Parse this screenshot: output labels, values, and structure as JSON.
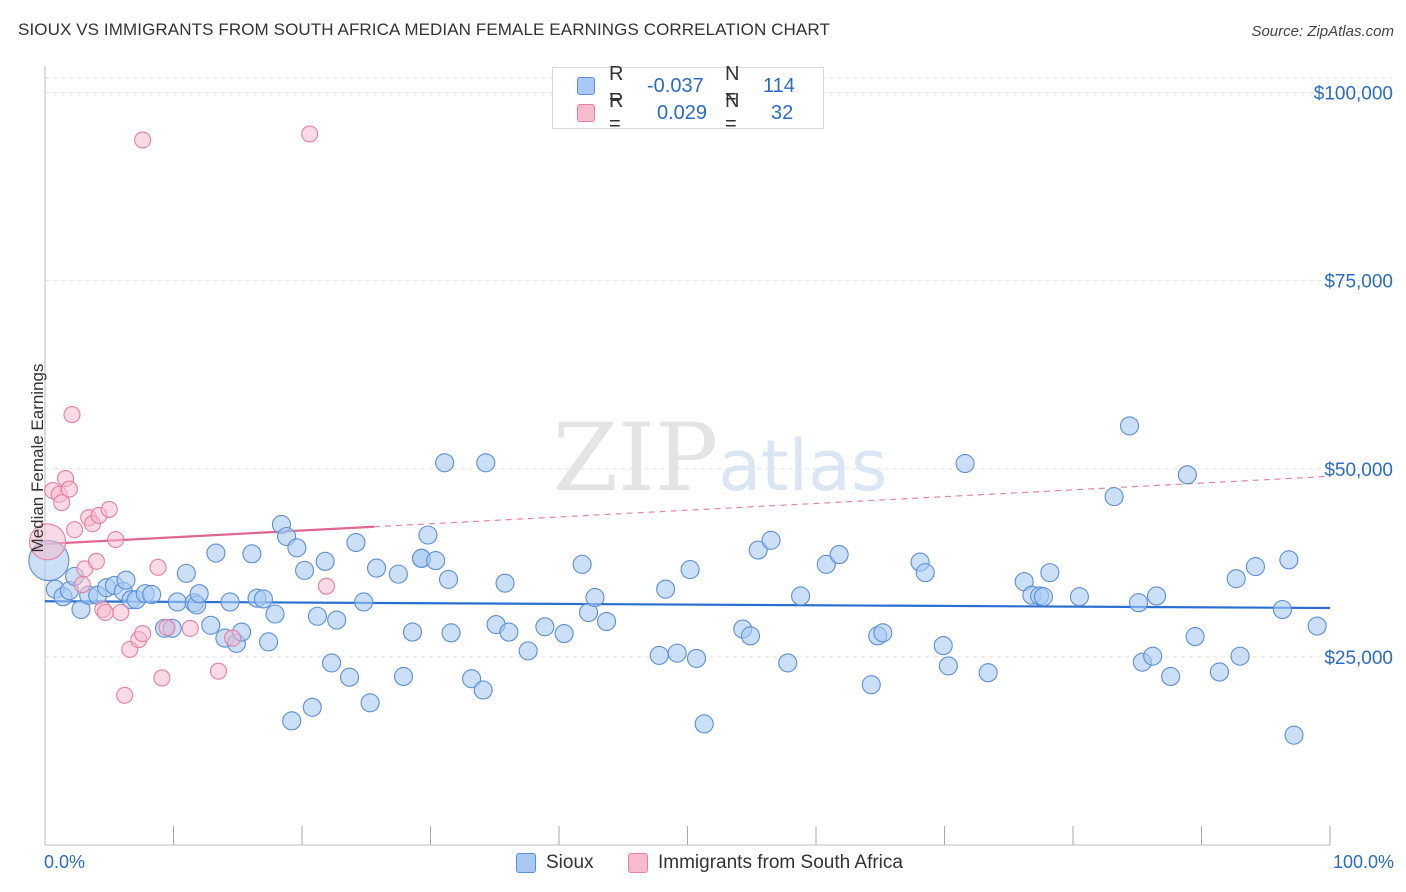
{
  "header": {
    "title": "SIOUX VS IMMIGRANTS FROM SOUTH AFRICA MEDIAN FEMALE EARNINGS CORRELATION CHART",
    "source": "Source: ZipAtlas.com"
  },
  "watermark": "ZIPatlas",
  "colors": {
    "sioux_fill": "#a9c9f2",
    "sioux_stroke": "#5b8fd9",
    "sioux_line": "#2a6fcf",
    "sa_fill": "#f6bccd",
    "sa_stroke": "#e77fa0",
    "sa_line": "#e0678f",
    "tick_label": "#2b6cc4",
    "grid": "#e2e2e2"
  },
  "legend_top": {
    "rows": [
      {
        "series": "Sioux",
        "r_label": "R =",
        "r_value": "-0.037",
        "n_label": "N =",
        "n_value": "114"
      },
      {
        "series": "Immigrants from South Africa",
        "r_label": "R =",
        "r_value": "0.029",
        "n_label": "N =",
        "n_value": "32"
      }
    ]
  },
  "legend_bottom": [
    "Sioux",
    "Immigrants from South Africa"
  ],
  "chart_data": {
    "type": "scatter",
    "title": "SIOUX VS IMMIGRANTS FROM SOUTH AFRICA MEDIAN FEMALE EARNINGS CORRELATION CHART",
    "xlabel": "",
    "ylabel": "Median Female Earnings",
    "xlim": [
      0,
      100
    ],
    "ylim": [
      0,
      103000
    ],
    "x_tick_labels": [
      "0.0%",
      "100.0%"
    ],
    "y_ticks": [
      25000,
      50000,
      75000,
      100000
    ],
    "y_tick_labels": [
      "$25,000",
      "$50,000",
      "$75,000",
      "$100,000"
    ],
    "grid": true,
    "series": [
      {
        "name": "Sioux",
        "r": -0.037,
        "n": 114,
        "trend": {
          "x0": 0,
          "y0": 32400,
          "x1": 100,
          "y1": 31500,
          "style": "solid"
        },
        "points": [
          [
            0.3,
            37800
          ],
          [
            0.8,
            34000
          ],
          [
            1.4,
            33000
          ],
          [
            1.9,
            33800
          ],
          [
            2.3,
            35700
          ],
          [
            2.8,
            31300
          ],
          [
            3.4,
            33200
          ],
          [
            4.1,
            33200
          ],
          [
            4.8,
            34200
          ],
          [
            5.4,
            34500
          ],
          [
            6.1,
            33700
          ],
          [
            6.3,
            35200
          ],
          [
            6.7,
            32600
          ],
          [
            7.1,
            32600
          ],
          [
            7.8,
            33400
          ],
          [
            8.3,
            33300
          ],
          [
            9.3,
            28800
          ],
          [
            9.9,
            28800
          ],
          [
            10.3,
            32300
          ],
          [
            11.0,
            36100
          ],
          [
            11.6,
            32200
          ],
          [
            11.8,
            31900
          ],
          [
            12.0,
            33400
          ],
          [
            12.9,
            29200
          ],
          [
            13.3,
            38800
          ],
          [
            14.0,
            27500
          ],
          [
            14.4,
            32300
          ],
          [
            14.9,
            26800
          ],
          [
            15.3,
            28300
          ],
          [
            16.1,
            38700
          ],
          [
            16.5,
            32800
          ],
          [
            17.0,
            32700
          ],
          [
            17.4,
            27000
          ],
          [
            17.9,
            30700
          ],
          [
            18.4,
            42600
          ],
          [
            18.8,
            41000
          ],
          [
            19.2,
            16500
          ],
          [
            19.6,
            39500
          ],
          [
            20.2,
            36500
          ],
          [
            20.8,
            18300
          ],
          [
            21.2,
            30400
          ],
          [
            21.8,
            37700
          ],
          [
            22.3,
            24200
          ],
          [
            22.7,
            29900
          ],
          [
            23.7,
            22300
          ],
          [
            24.2,
            40200
          ],
          [
            24.8,
            32300
          ],
          [
            25.3,
            18900
          ],
          [
            25.8,
            36800
          ],
          [
            27.5,
            36000
          ],
          [
            27.9,
            22400
          ],
          [
            28.6,
            28300
          ],
          [
            29.3,
            38100
          ],
          [
            29.8,
            41200
          ],
          [
            29.3,
            38100
          ],
          [
            30.4,
            37800
          ],
          [
            31.1,
            50800
          ],
          [
            31.4,
            35300
          ],
          [
            31.6,
            28200
          ],
          [
            33.2,
            22100
          ],
          [
            34.1,
            20600
          ],
          [
            34.3,
            50800
          ],
          [
            35.1,
            29300
          ],
          [
            35.8,
            34800
          ],
          [
            36.1,
            28300
          ],
          [
            37.6,
            25800
          ],
          [
            38.9,
            29000
          ],
          [
            40.4,
            28100
          ],
          [
            41.8,
            37300
          ],
          [
            42.3,
            30900
          ],
          [
            42.8,
            32900
          ],
          [
            43.7,
            29700
          ],
          [
            47.8,
            25200
          ],
          [
            48.3,
            34000
          ],
          [
            49.2,
            25500
          ],
          [
            50.2,
            36600
          ],
          [
            50.7,
            24800
          ],
          [
            51.3,
            16100
          ],
          [
            54.3,
            28700
          ],
          [
            54.9,
            27800
          ],
          [
            55.5,
            39200
          ],
          [
            56.5,
            40500
          ],
          [
            57.8,
            24200
          ],
          [
            58.8,
            33100
          ],
          [
            60.8,
            37300
          ],
          [
            61.8,
            38600
          ],
          [
            64.3,
            21300
          ],
          [
            64.8,
            27800
          ],
          [
            65.2,
            28200
          ],
          [
            68.1,
            37600
          ],
          [
            68.5,
            36200
          ],
          [
            69.9,
            26500
          ],
          [
            70.3,
            23800
          ],
          [
            71.6,
            50700
          ],
          [
            73.4,
            22900
          ],
          [
            76.2,
            35000
          ],
          [
            76.8,
            33200
          ],
          [
            77.4,
            33100
          ],
          [
            77.7,
            33000
          ],
          [
            78.2,
            36200
          ],
          [
            80.5,
            33000
          ],
          [
            83.2,
            46300
          ],
          [
            84.4,
            55700
          ],
          [
            85.1,
            32200
          ],
          [
            85.4,
            24300
          ],
          [
            86.2,
            25100
          ],
          [
            86.5,
            33100
          ],
          [
            87.6,
            22400
          ],
          [
            88.9,
            49200
          ],
          [
            89.5,
            27700
          ],
          [
            91.4,
            23000
          ],
          [
            92.7,
            35400
          ],
          [
            93.0,
            25100
          ],
          [
            94.2,
            37000
          ],
          [
            96.3,
            31300
          ],
          [
            96.8,
            37900
          ],
          [
            97.2,
            14600
          ],
          [
            99.0,
            29100
          ]
        ]
      },
      {
        "name": "Immigrants from South Africa",
        "r": 0.029,
        "n": 32,
        "trend_solid": {
          "x0": 0,
          "y0": 40000,
          "x1": 25.6,
          "y1": 42300
        },
        "trend_dashed": {
          "x0": 25.6,
          "y0": 42300,
          "x1": 100,
          "y1": 49000
        },
        "points": [
          [
            0.2,
            40300
          ],
          [
            0.6,
            47100
          ],
          [
            1.1,
            46600
          ],
          [
            1.3,
            45500
          ],
          [
            1.6,
            48700
          ],
          [
            1.9,
            47300
          ],
          [
            2.1,
            57200
          ],
          [
            2.3,
            41900
          ],
          [
            2.9,
            34600
          ],
          [
            3.1,
            36700
          ],
          [
            3.4,
            43500
          ],
          [
            3.7,
            42700
          ],
          [
            4.0,
            37700
          ],
          [
            4.2,
            43800
          ],
          [
            4.5,
            31300
          ],
          [
            4.7,
            30900
          ],
          [
            5.0,
            44600
          ],
          [
            5.5,
            40600
          ],
          [
            5.9,
            30900
          ],
          [
            6.2,
            19900
          ],
          [
            6.6,
            26000
          ],
          [
            7.3,
            27300
          ],
          [
            7.6,
            28100
          ],
          [
            7.6,
            93700
          ],
          [
            8.8,
            36900
          ],
          [
            9.1,
            22200
          ],
          [
            9.5,
            28900
          ],
          [
            11.3,
            28800
          ],
          [
            13.5,
            23100
          ],
          [
            14.6,
            27500
          ],
          [
            20.6,
            94500
          ],
          [
            21.9,
            34400
          ]
        ]
      }
    ]
  }
}
